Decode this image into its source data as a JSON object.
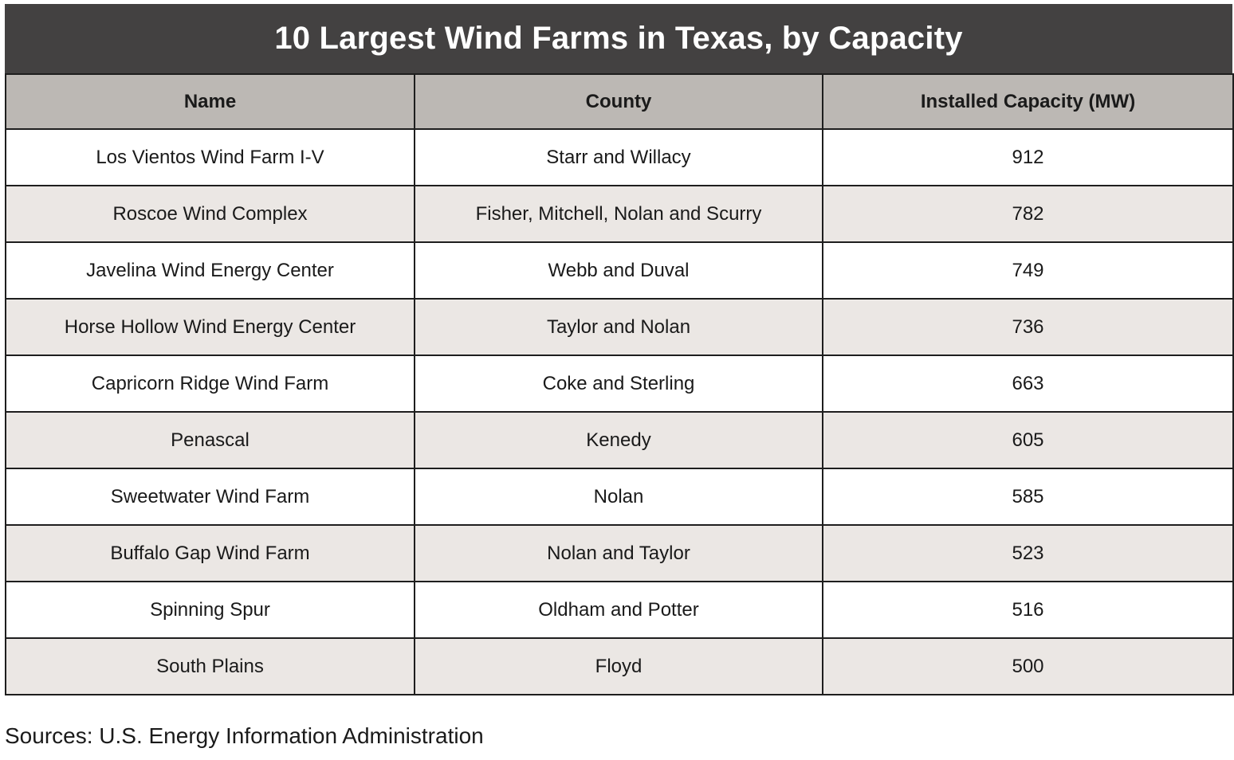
{
  "colors": {
    "title_bg": "#434141",
    "header_bg": "#bcb8b4",
    "row_alt_bg": "#ebe7e4",
    "row_bg": "#ffffff",
    "border": "#1e1e1e"
  },
  "chart_data": {
    "type": "table",
    "title": "10 Largest Wind Farms in Texas, by Capacity",
    "columns": [
      "Name",
      "County",
      "Installed Capacity (MW)"
    ],
    "rows": [
      [
        "Los Vientos Wind Farm I-V",
        "Starr and Willacy",
        "912"
      ],
      [
        "Roscoe Wind Complex",
        "Fisher, Mitchell, Nolan and Scurry",
        "782"
      ],
      [
        "Javelina Wind Energy Center",
        "Webb and Duval",
        "749"
      ],
      [
        "Horse Hollow Wind Energy Center",
        "Taylor and Nolan",
        "736"
      ],
      [
        "Capricorn Ridge Wind Farm",
        "Coke and Sterling",
        "663"
      ],
      [
        "Penascal",
        "Kenedy",
        "605"
      ],
      [
        "Sweetwater Wind Farm",
        "Nolan",
        "585"
      ],
      [
        "Buffalo Gap Wind Farm",
        "Nolan and Taylor",
        "523"
      ],
      [
        "Spinning Spur",
        "Oldham and Potter",
        "516"
      ],
      [
        "South Plains",
        "Floyd",
        "500"
      ]
    ],
    "source": "Sources: U.S. Energy Information Administration"
  }
}
